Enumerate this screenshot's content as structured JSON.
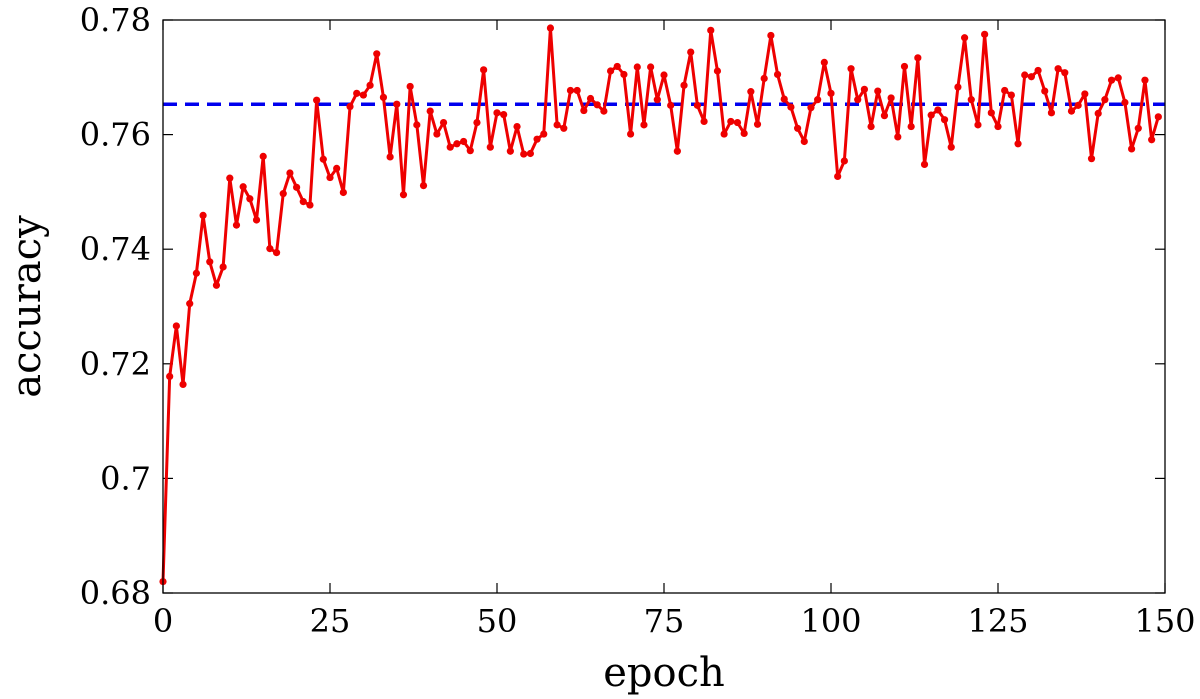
{
  "chart_data": {
    "type": "line",
    "title": "",
    "xlabel": "epoch",
    "ylabel": "accuracy",
    "xlim": [
      0,
      150
    ],
    "ylim": [
      0.68,
      0.78
    ],
    "xticks": [
      0,
      25,
      50,
      75,
      100,
      125,
      150
    ],
    "xtick_labels": [
      "0",
      "25",
      "50",
      "75",
      "100",
      "125",
      "150"
    ],
    "yticks": [
      0.68,
      0.7,
      0.72,
      0.74,
      0.76,
      0.78
    ],
    "ytick_labels": [
      "0.68",
      "0.7",
      "0.72",
      "0.74",
      "0.76",
      "0.78"
    ],
    "grid": false,
    "legend": "none",
    "reference_lines": [
      {
        "y": 0.7653,
        "style": "dashed",
        "color": "#0000ee"
      }
    ],
    "series": [
      {
        "color": "#ee0000",
        "marker": "circle",
        "x": [
          0,
          1,
          2,
          3,
          4,
          5,
          6,
          7,
          8,
          9,
          10,
          11,
          12,
          13,
          14,
          15,
          16,
          17,
          18,
          19,
          20,
          21,
          22,
          23,
          24,
          25,
          26,
          27,
          28,
          29,
          30,
          31,
          32,
          33,
          34,
          35,
          36,
          37,
          38,
          39,
          40,
          41,
          42,
          43,
          44,
          45,
          46,
          47,
          48,
          49,
          50,
          51,
          52,
          53,
          54,
          55,
          56,
          57,
          58,
          59,
          60,
          61,
          62,
          63,
          64,
          65,
          66,
          67,
          68,
          69,
          70,
          71,
          72,
          73,
          74,
          75,
          76,
          77,
          78,
          79,
          80,
          81,
          82,
          83,
          84,
          85,
          86,
          87,
          88,
          89,
          90,
          91,
          92,
          93,
          94,
          95,
          96,
          97,
          98,
          99,
          100,
          101,
          102,
          103,
          104,
          105,
          106,
          107,
          108,
          109,
          110,
          111,
          112,
          113,
          114,
          115,
          116,
          117,
          118,
          119,
          120,
          121,
          122,
          123,
          124,
          125,
          126,
          127,
          128,
          129,
          130,
          131,
          132,
          133,
          134,
          135,
          136,
          137,
          138,
          139,
          140,
          141,
          142,
          143,
          144,
          145,
          146,
          147,
          148,
          149
        ],
        "values": [
          0.682,
          0.7178,
          0.7266,
          0.7164,
          0.7305,
          0.7358,
          0.7459,
          0.7378,
          0.7337,
          0.7369,
          0.7524,
          0.7442,
          0.7509,
          0.7488,
          0.7451,
          0.7562,
          0.7401,
          0.7394,
          0.7497,
          0.7533,
          0.7508,
          0.7483,
          0.7477,
          0.766,
          0.7557,
          0.7525,
          0.7541,
          0.7499,
          0.7649,
          0.7672,
          0.7669,
          0.7686,
          0.7741,
          0.7665,
          0.7561,
          0.7653,
          0.7495,
          0.7684,
          0.7617,
          0.7511,
          0.7641,
          0.7601,
          0.7621,
          0.7578,
          0.7584,
          0.7588,
          0.7572,
          0.7621,
          0.7713,
          0.7578,
          0.7638,
          0.7635,
          0.7571,
          0.7614,
          0.7566,
          0.7567,
          0.7592,
          0.7601,
          0.7786,
          0.7617,
          0.7611,
          0.7677,
          0.7677,
          0.7642,
          0.7663,
          0.7652,
          0.7641,
          0.7711,
          0.7719,
          0.7705,
          0.7601,
          0.7718,
          0.7617,
          0.7718,
          0.7661,
          0.7704,
          0.7651,
          0.7571,
          0.7686,
          0.7744,
          0.7651,
          0.7623,
          0.7782,
          0.7711,
          0.7601,
          0.7623,
          0.7621,
          0.7602,
          0.7675,
          0.7618,
          0.7698,
          0.7773,
          0.7705,
          0.7662,
          0.7648,
          0.7611,
          0.7588,
          0.7647,
          0.7661,
          0.7726,
          0.7672,
          0.7527,
          0.7554,
          0.7715,
          0.7661,
          0.7679,
          0.7614,
          0.7676,
          0.7633,
          0.7664,
          0.7596,
          0.7719,
          0.7614,
          0.7734,
          0.7548,
          0.7634,
          0.7643,
          0.7626,
          0.7578,
          0.7683,
          0.7769,
          0.7661,
          0.7617,
          0.7775,
          0.7638,
          0.7614,
          0.7677,
          0.7669,
          0.7584,
          0.7704,
          0.7701,
          0.7712,
          0.7676,
          0.7638,
          0.7715,
          0.7708,
          0.7641,
          0.7651,
          0.7671,
          0.7558,
          0.7637,
          0.7661,
          0.7695,
          0.7699,
          0.7656,
          0.7575,
          0.7611,
          0.7695,
          0.7591,
          0.7631
        ]
      }
    ]
  }
}
